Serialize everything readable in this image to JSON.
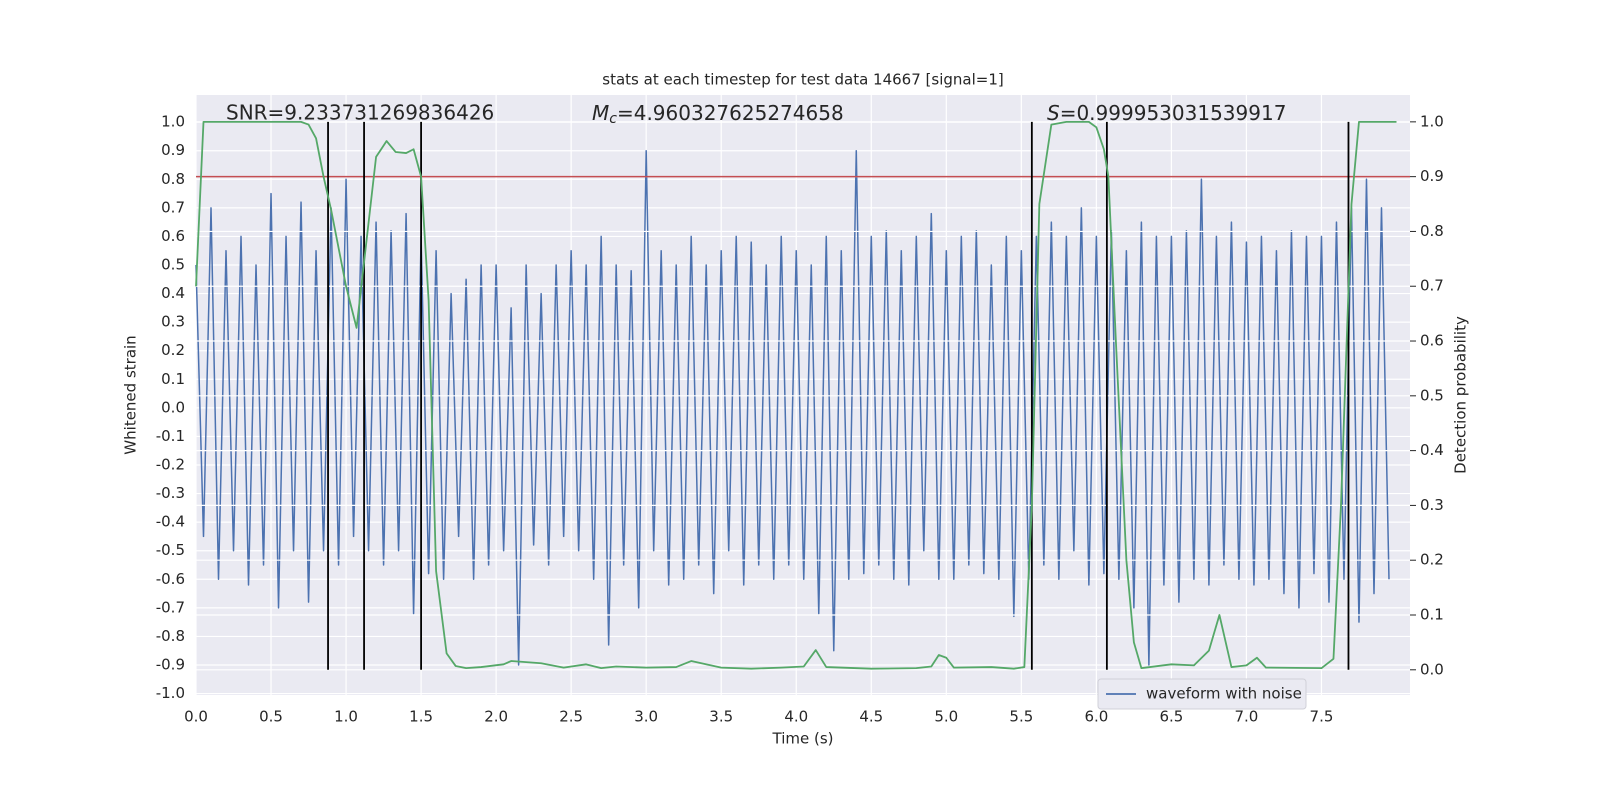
{
  "chart_data": {
    "type": "line",
    "title": "stats at each timestep for test data 14667 [signal=1]",
    "xlabel": "Time (s)",
    "ylabel": "Whitened strain",
    "y2label": "Detection probability",
    "annotations": {
      "snr": "SNR=9.233731269836426",
      "mc": {
        "symbol": "M",
        "subscript": "c",
        "text": "=4.960327625274658"
      },
      "s": {
        "symbol": "S",
        "text": "=0.999953031539917"
      }
    },
    "xlim": [
      0,
      8.09
    ],
    "ylim": [
      -1.005,
      1.095
    ],
    "y2lim": [
      -0.046,
      1.049
    ],
    "xticks": [
      {
        "value": 0,
        "label": "0.0"
      },
      0.5,
      {
        "value": 1,
        "label": "1.0"
      },
      1.5,
      {
        "value": 2,
        "label": "2.0"
      },
      2.5,
      {
        "value": 3,
        "label": "3.0"
      },
      3.5,
      {
        "value": 4,
        "label": "4.0"
      },
      4.5,
      {
        "value": 5,
        "label": "5.0"
      },
      5.5,
      {
        "value": 6,
        "label": "6.0"
      },
      6.5,
      {
        "value": 7,
        "label": "7.0"
      },
      7.5
    ],
    "yticks": [
      {
        "value": -1,
        "label": "-1.0"
      },
      -0.9,
      -0.8,
      -0.7,
      -0.6,
      -0.5,
      -0.4,
      -0.3,
      -0.2,
      -0.1,
      {
        "value": 0,
        "label": "0.0"
      },
      0.1,
      0.2,
      0.3,
      0.4,
      0.5,
      0.6,
      0.7,
      0.8,
      0.9,
      {
        "value": 1,
        "label": "1.0"
      }
    ],
    "y2ticks": [
      {
        "value": 0,
        "label": "0.0"
      },
      0.1,
      0.2,
      0.3,
      0.4,
      0.5,
      0.6,
      0.7,
      0.8,
      0.9,
      {
        "value": 1,
        "label": "1.0"
      }
    ],
    "grid": true,
    "legend": "lower right",
    "series": [
      {
        "name": "waveform with noise",
        "color": "#4c72b0",
        "x": [
          0,
          0.05,
          0.1,
          0.15,
          0.2,
          0.25,
          0.3,
          0.35,
          0.4,
          0.45,
          0.5,
          0.55,
          0.6,
          0.65,
          0.7,
          0.75,
          0.8,
          0.85,
          0.9,
          0.95,
          1,
          1.05,
          1.1,
          1.15,
          1.2,
          1.25,
          1.3,
          1.35,
          1.4,
          1.45,
          1.5,
          1.55,
          1.6,
          1.65,
          1.7,
          1.75,
          1.8,
          1.85,
          1.9,
          1.95,
          2,
          2.05,
          2.1,
          2.15,
          2.2,
          2.25,
          2.3,
          2.35,
          2.4,
          2.45,
          2.5,
          2.55,
          2.6,
          2.65,
          2.7,
          2.75,
          2.8,
          2.85,
          2.9,
          2.95,
          3,
          3.05,
          3.1,
          3.15,
          3.2,
          3.25,
          3.3,
          3.35,
          3.4,
          3.45,
          3.5,
          3.55,
          3.6,
          3.65,
          3.7,
          3.75,
          3.8,
          3.85,
          3.9,
          3.95,
          4,
          4.05,
          4.1,
          4.15,
          4.2,
          4.25,
          4.3,
          4.35,
          4.4,
          4.45,
          4.5,
          4.55,
          4.6,
          4.65,
          4.7,
          4.75,
          4.8,
          4.85,
          4.9,
          4.95,
          5,
          5.05,
          5.1,
          5.15,
          5.2,
          5.25,
          5.3,
          5.35,
          5.4,
          5.45,
          5.5,
          5.55,
          5.6,
          5.65,
          5.7,
          5.75,
          5.8,
          5.85,
          5.9,
          5.95,
          6,
          6.05,
          6.1,
          6.15,
          6.2,
          6.25,
          6.3,
          6.35,
          6.4,
          6.45,
          6.5,
          6.55,
          6.6,
          6.65,
          6.7,
          6.75,
          6.8,
          6.85,
          6.9,
          6.95,
          7,
          7.05,
          7.1,
          7.15,
          7.2,
          7.25,
          7.3,
          7.35,
          7.4,
          7.45,
          7.5,
          7.55,
          7.6,
          7.65,
          7.7,
          7.75,
          7.8,
          7.85,
          7.9,
          7.95
        ],
        "values": [
          0.5,
          -0.45,
          0.7,
          -0.6,
          0.55,
          -0.5,
          0.6,
          -0.62,
          0.5,
          -0.55,
          0.75,
          -0.7,
          0.6,
          -0.5,
          0.72,
          -0.68,
          0.55,
          -0.5,
          0.7,
          -0.55,
          0.8,
          -0.45,
          0.6,
          -0.5,
          0.65,
          -0.55,
          0.62,
          -0.5,
          0.68,
          -0.72,
          0.6,
          -0.58,
          0.55,
          -0.6,
          0.4,
          -0.45,
          0.45,
          -0.6,
          0.5,
          -0.55,
          0.5,
          -0.5,
          0.35,
          -0.9,
          0.5,
          -0.48,
          0.4,
          -0.55,
          0.5,
          -0.45,
          0.55,
          -0.5,
          0.5,
          -0.6,
          0.6,
          -0.83,
          0.5,
          -0.55,
          0.48,
          -0.7,
          0.9,
          -0.5,
          0.55,
          -0.62,
          0.5,
          -0.6,
          0.6,
          -0.55,
          0.5,
          -0.65,
          0.55,
          -0.5,
          0.6,
          -0.62,
          0.58,
          -0.55,
          0.5,
          -0.6,
          0.6,
          -0.55,
          0.55,
          -0.6,
          0.5,
          -0.72,
          0.6,
          -0.85,
          0.55,
          -0.6,
          0.9,
          -0.58,
          0.6,
          -0.55,
          0.62,
          -0.6,
          0.55,
          -0.62,
          0.6,
          -0.5,
          0.68,
          -0.6,
          0.55,
          -0.6,
          0.6,
          -0.55,
          0.62,
          -0.58,
          0.5,
          -0.6,
          0.6,
          -0.73,
          0.55,
          -0.6,
          0.6,
          -0.55,
          0.65,
          -0.6,
          0.6,
          -0.5,
          0.7,
          -0.62,
          0.6,
          -0.58,
          0.62,
          -0.6,
          0.55,
          -0.7,
          0.65,
          -0.9,
          0.6,
          -0.62,
          0.6,
          -0.68,
          0.62,
          -0.6,
          0.8,
          -0.62,
          0.6,
          -0.55,
          0.65,
          -0.6,
          0.58,
          -0.62,
          0.6,
          -0.6,
          0.55,
          -0.65,
          0.62,
          -0.7,
          0.6,
          -0.58,
          0.6,
          -0.68,
          0.65,
          -0.6,
          0.7,
          -0.75,
          0.8,
          -0.65,
          0.7,
          -0.6
        ]
      },
      {
        "color": "#55a868",
        "axis": "y2",
        "x": [
          0,
          0.05,
          0.1,
          0.3,
          0.5,
          0.7,
          0.75,
          0.8,
          0.85,
          0.9,
          1,
          1.07,
          1.2,
          1.27,
          1.33,
          1.4,
          1.45,
          1.5,
          1.55,
          1.6,
          1.67,
          1.73,
          1.8,
          1.9,
          2.05,
          2.1,
          2.3,
          2.45,
          2.6,
          2.7,
          2.8,
          3.0,
          3.2,
          3.3,
          3.5,
          3.7,
          3.9,
          4.05,
          4.13,
          4.2,
          4.5,
          4.8,
          4.9,
          4.95,
          5.0,
          5.05,
          5.3,
          5.45,
          5.52,
          5.57,
          5.62,
          5.7,
          5.8,
          5.95,
          6.0,
          6.05,
          6.08,
          6.13,
          6.2,
          6.25,
          6.3,
          6.5,
          6.65,
          6.75,
          6.82,
          6.9,
          7.0,
          7.07,
          7.13,
          7.5,
          7.58,
          7.63,
          7.7,
          7.75,
          8.0
        ],
        "values": [
          0.7,
          1.0,
          1.0,
          1.0,
          1.0,
          1.0,
          0.995,
          0.97,
          0.9,
          0.84,
          0.7,
          0.624,
          0.936,
          0.965,
          0.945,
          0.943,
          0.95,
          0.9,
          0.675,
          0.18,
          0.03,
          0.007,
          0.003,
          0.005,
          0.01,
          0.016,
          0.012,
          0.004,
          0.01,
          0.003,
          0.006,
          0.004,
          0.005,
          0.016,
          0.004,
          0.002,
          0.004,
          0.006,
          0.036,
          0.005,
          0.002,
          0.003,
          0.006,
          0.027,
          0.022,
          0.004,
          0.005,
          0.002,
          0.005,
          0.3,
          0.85,
          0.995,
          1.0,
          1.0,
          0.99,
          0.95,
          0.9,
          0.6,
          0.2,
          0.05,
          0.003,
          0.01,
          0.008,
          0.035,
          0.1,
          0.005,
          0.008,
          0.022,
          0.004,
          0.003,
          0.02,
          0.3,
          0.85,
          1.0,
          1.0
        ]
      }
    ],
    "threshold": {
      "value": 0.9,
      "axis": "y2",
      "color": "#c44e52"
    },
    "vlines": {
      "values": [
        0.88,
        1.12,
        1.5,
        5.57,
        6.07,
        7.68
      ],
      "color": "#000000"
    }
  }
}
